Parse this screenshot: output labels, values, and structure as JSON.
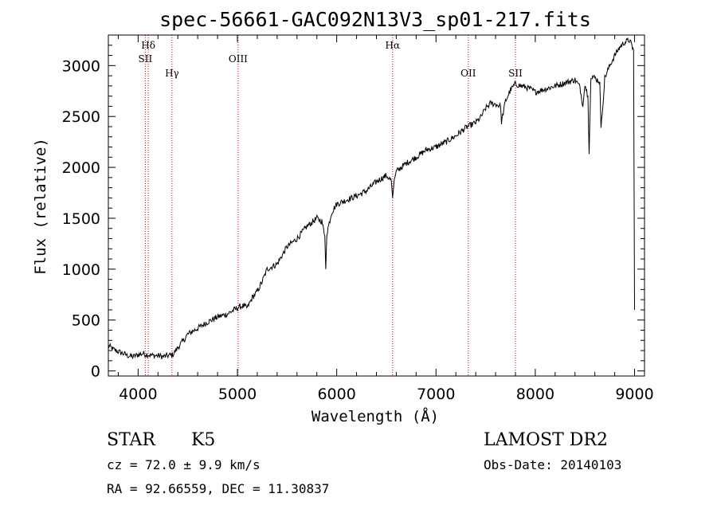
{
  "chart_data": {
    "type": "line",
    "title": "spec-56661-GAC092N13V3_sp01-217.fits",
    "xlabel": "Wavelength (Å)",
    "ylabel": "Flux (relative)",
    "xlim": [
      3700,
      9100
    ],
    "ylim": [
      -50,
      3300
    ],
    "xticks": [
      4000,
      5000,
      6000,
      7000,
      8000,
      9000
    ],
    "yticks": [
      0,
      500,
      1000,
      1500,
      2000,
      2500,
      3000
    ],
    "grid": false,
    "series": [
      {
        "color": "#000000",
        "x": [
          3700,
          3750,
          3800,
          3850,
          3900,
          3950,
          4000,
          4050,
          4100,
          4150,
          4200,
          4250,
          4300,
          4350,
          4400,
          4450,
          4500,
          4550,
          4600,
          4700,
          4800,
          4900,
          5000,
          5050,
          5100,
          5150,
          5200,
          5250,
          5300,
          5400,
          5500,
          5600,
          5700,
          5800,
          5850,
          5880,
          5890,
          5900,
          5950,
          6000,
          6100,
          6200,
          6300,
          6400,
          6500,
          6550,
          6563,
          6580,
          6600,
          6700,
          6800,
          6900,
          7000,
          7100,
          7200,
          7300,
          7400,
          7450,
          7500,
          7550,
          7600,
          7650,
          7660,
          7700,
          7750,
          7800,
          7850,
          7900,
          7950,
          8000,
          8100,
          8200,
          8300,
          8400,
          8450,
          8480,
          8500,
          8530,
          8542,
          8560,
          8600,
          8650,
          8662,
          8700,
          8750,
          8800,
          8850,
          8900,
          8950,
          8990,
          9000
        ],
        "y": [
          250,
          210,
          190,
          170,
          150,
          140,
          160,
          170,
          160,
          150,
          150,
          140,
          150,
          160,
          230,
          290,
          360,
          390,
          420,
          480,
          530,
          560,
          620,
          640,
          620,
          720,
          780,
          880,
          1000,
          1050,
          1220,
          1300,
          1420,
          1500,
          1470,
          1330,
          1000,
          1350,
          1560,
          1640,
          1680,
          1720,
          1770,
          1860,
          1920,
          1870,
          1700,
          1880,
          1960,
          2040,
          2100,
          2170,
          2200,
          2250,
          2310,
          2390,
          2440,
          2490,
          2580,
          2630,
          2620,
          2600,
          2450,
          2650,
          2760,
          2820,
          2800,
          2790,
          2770,
          2740,
          2770,
          2800,
          2830,
          2860,
          2790,
          2600,
          2820,
          2700,
          2130,
          2900,
          2880,
          2840,
          2370,
          2880,
          3000,
          3100,
          3180,
          3230,
          3250,
          3150,
          600
        ]
      }
    ],
    "annotations": [
      {
        "label": "Hδ",
        "x": 4102,
        "row": "top"
      },
      {
        "label": "SII",
        "x": 4072,
        "row": "second"
      },
      {
        "label": "Hγ",
        "x": 4341,
        "row": "third"
      },
      {
        "label": "OIII",
        "x": 5007,
        "row": "second"
      },
      {
        "label": "Hα",
        "x": 6563,
        "row": "top"
      },
      {
        "label": "OII",
        "x": 7325,
        "row": "third"
      },
      {
        "label": "SII",
        "x": 7800,
        "row": "third"
      }
    ],
    "annotation_line_color": "#cc0000"
  },
  "info": {
    "object_class": "STAR",
    "subclass": "K5",
    "survey": "LAMOST DR2",
    "cz": "cz = 72.0 ± 9.9 km/s",
    "obs_date": "Obs-Date: 20140103",
    "coords": "RA =  92.66559, DEC =  11.30837"
  }
}
